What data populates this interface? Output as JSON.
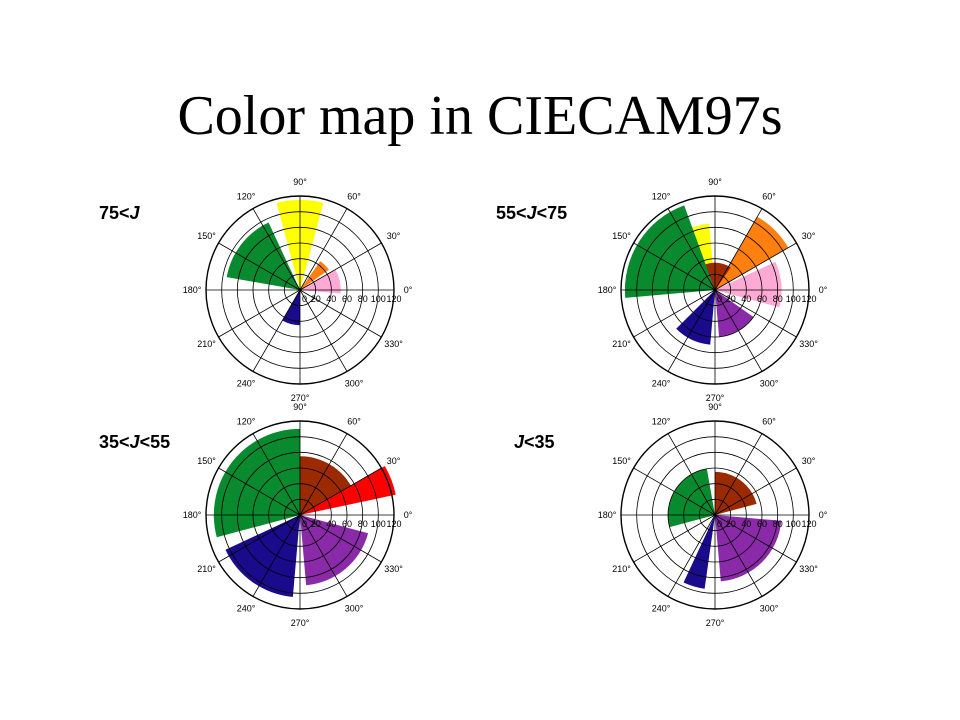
{
  "title": "Color map in CIECAM97s",
  "colors": {
    "yellow": "#ffff00",
    "orange": "#ff7f0f",
    "pink": "#ffaad4",
    "green": "#0a8a2e",
    "navy": "#1a0a8c",
    "brown": "#9c2a00",
    "purple": "#8a2aa8",
    "red": "#ff0000"
  },
  "chart_data": [
    {
      "type": "polar-bar",
      "label_prefix": "75<",
      "label_var": "J",
      "label_suffix": "",
      "r_ticks": [
        "0",
        "20",
        "40",
        "60",
        "80",
        "100",
        "120"
      ],
      "theta_ticks": [
        "0°",
        "30°",
        "60°",
        "90°",
        "120°",
        "150°",
        "180°",
        "210°",
        "240°",
        "270°",
        "300°",
        "330°"
      ],
      "rmax": 120,
      "sectors": [
        {
          "color": "yellow",
          "theta_start": 75,
          "theta_end": 105,
          "r": 115
        },
        {
          "color": "orange",
          "theta_start": 35,
          "theta_end": 55,
          "r": 45
        },
        {
          "color": "pink",
          "theta_start": 355,
          "theta_end": 30,
          "r": 52
        },
        {
          "color": "green",
          "theta_start": 115,
          "theta_end": 170,
          "r": 95
        },
        {
          "color": "navy",
          "theta_start": 240,
          "theta_end": 270,
          "r": 45
        }
      ]
    },
    {
      "type": "polar-bar",
      "label_prefix": "55<",
      "label_var": "J",
      "label_suffix": "<75",
      "r_ticks": [
        "0",
        "20",
        "40",
        "60",
        "80",
        "100",
        "120"
      ],
      "theta_ticks": [
        "0°",
        "30°",
        "60°",
        "90°",
        "120°",
        "150°",
        "180°",
        "210°",
        "240°",
        "270°",
        "300°",
        "330°"
      ],
      "rmax": 120,
      "sectors": [
        {
          "color": "yellow",
          "theta_start": 95,
          "theta_end": 110,
          "r": 85
        },
        {
          "color": "orange",
          "theta_start": 30,
          "theta_end": 60,
          "r": 108
        },
        {
          "color": "pink",
          "theta_start": 345,
          "theta_end": 25,
          "r": 85
        },
        {
          "color": "brown",
          "theta_start": 55,
          "theta_end": 125,
          "r": 35
        },
        {
          "color": "green",
          "theta_start": 110,
          "theta_end": 185,
          "r": 115
        },
        {
          "color": "navy",
          "theta_start": 225,
          "theta_end": 265,
          "r": 70
        },
        {
          "color": "purple",
          "theta_start": 275,
          "theta_end": 325,
          "r": 60
        }
      ]
    },
    {
      "type": "polar-bar",
      "label_prefix": "35<",
      "label_var": "J",
      "label_suffix": "<55",
      "r_ticks": [
        "0",
        "20",
        "40",
        "60",
        "80",
        "100",
        "120"
      ],
      "theta_ticks": [
        "0°",
        "30°",
        "60°",
        "90°",
        "120°",
        "150°",
        "180°",
        "210°",
        "240°",
        "270°",
        "300°",
        "330°"
      ],
      "rmax": 120,
      "sectors": [
        {
          "color": "brown",
          "theta_start": 20,
          "theta_end": 90,
          "r": 75
        },
        {
          "color": "red",
          "theta_start": 12,
          "theta_end": 30,
          "r": 125
        },
        {
          "color": "green",
          "theta_start": 90,
          "theta_end": 195,
          "r": 110
        },
        {
          "color": "navy",
          "theta_start": 205,
          "theta_end": 265,
          "r": 105
        },
        {
          "color": "purple",
          "theta_start": 275,
          "theta_end": 345,
          "r": 90
        }
      ]
    },
    {
      "type": "polar-bar",
      "label_prefix": "",
      "label_var": "J",
      "label_suffix": "<35",
      "r_ticks": [
        "0",
        "20",
        "40",
        "60",
        "80",
        "100",
        "120"
      ],
      "theta_ticks": [
        "0°",
        "30°",
        "60°",
        "90°",
        "120°",
        "150°",
        "180°",
        "210°",
        "240°",
        "270°",
        "300°",
        "330°"
      ],
      "rmax": 120,
      "sectors": [
        {
          "color": "brown",
          "theta_start": 15,
          "theta_end": 90,
          "r": 55
        },
        {
          "color": "green",
          "theta_start": 100,
          "theta_end": 195,
          "r": 60
        },
        {
          "color": "purple",
          "theta_start": 275,
          "theta_end": 355,
          "r": 85
        },
        {
          "color": "navy",
          "theta_start": 245,
          "theta_end": 262,
          "r": 95
        }
      ]
    }
  ]
}
